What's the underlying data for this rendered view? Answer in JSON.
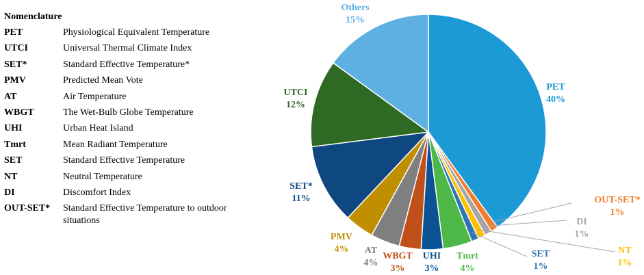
{
  "nomenclature": {
    "title": "Nomenclature",
    "items": [
      {
        "abbr": "PET",
        "def": "Physiological Equivalent Temperature"
      },
      {
        "abbr": "UTCI",
        "def": "Universal Thermal Climate Index"
      },
      {
        "abbr": "SET*",
        "def": "Standard Effective Temperature*"
      },
      {
        "abbr": "PMV",
        "def": "Predicted Mean Vote"
      },
      {
        "abbr": "AT",
        "def": "Air Temperature"
      },
      {
        "abbr": "WBGT",
        "def": "The Wet-Bulb Globe Temperature"
      },
      {
        "abbr": "UHI",
        "def": "Urban Heat Island"
      },
      {
        "abbr": "Tmrt",
        "def": "Mean Radiant Temperature"
      },
      {
        "abbr": "SET",
        "def": "Standard Effective Temperature"
      },
      {
        "abbr": "NT",
        "def": "Neutral Temperature"
      },
      {
        "abbr": "DI",
        "def": "Discomfort Index"
      },
      {
        "abbr": "OUT-SET*",
        "def": "Standard Effective Temperature to outdoor situations"
      }
    ]
  },
  "chart_data": {
    "type": "pie",
    "start": "12 o'clock",
    "direction": "clockwise",
    "slices": [
      {
        "label": "PET",
        "value": 40,
        "display": "40%",
        "color": "#1c9ad6"
      },
      {
        "label": "OUT-SET*",
        "value": 1,
        "display": "1%",
        "color": "#f47b2a"
      },
      {
        "label": "DI",
        "value": 1,
        "display": "1%",
        "color": "#a6a6a6"
      },
      {
        "label": "NT",
        "value": 1,
        "display": "1%",
        "color": "#ffc000"
      },
      {
        "label": "SET",
        "value": 1,
        "display": "1%",
        "color": "#2e75b6"
      },
      {
        "label": "Tmrt",
        "value": 4,
        "display": "4%",
        "color": "#4db848"
      },
      {
        "label": "UHI",
        "value": 3,
        "display": "3%",
        "color": "#0c5396"
      },
      {
        "label": "WBGT",
        "value": 3,
        "display": "3%",
        "color": "#c0501a"
      },
      {
        "label": "AT",
        "value": 4,
        "display": "4%",
        "color": "#7f7f7f"
      },
      {
        "label": "PMV",
        "value": 4,
        "display": "4%",
        "color": "#bf8f00"
      },
      {
        "label": "SET*",
        "value": 11,
        "display": "11%",
        "color": "#0f4780"
      },
      {
        "label": "UTCI",
        "value": 12,
        "display": "12%",
        "color": "#2f6a25"
      },
      {
        "label": "Others",
        "value": 15,
        "display": "15%",
        "color": "#5eb0e3"
      }
    ]
  }
}
